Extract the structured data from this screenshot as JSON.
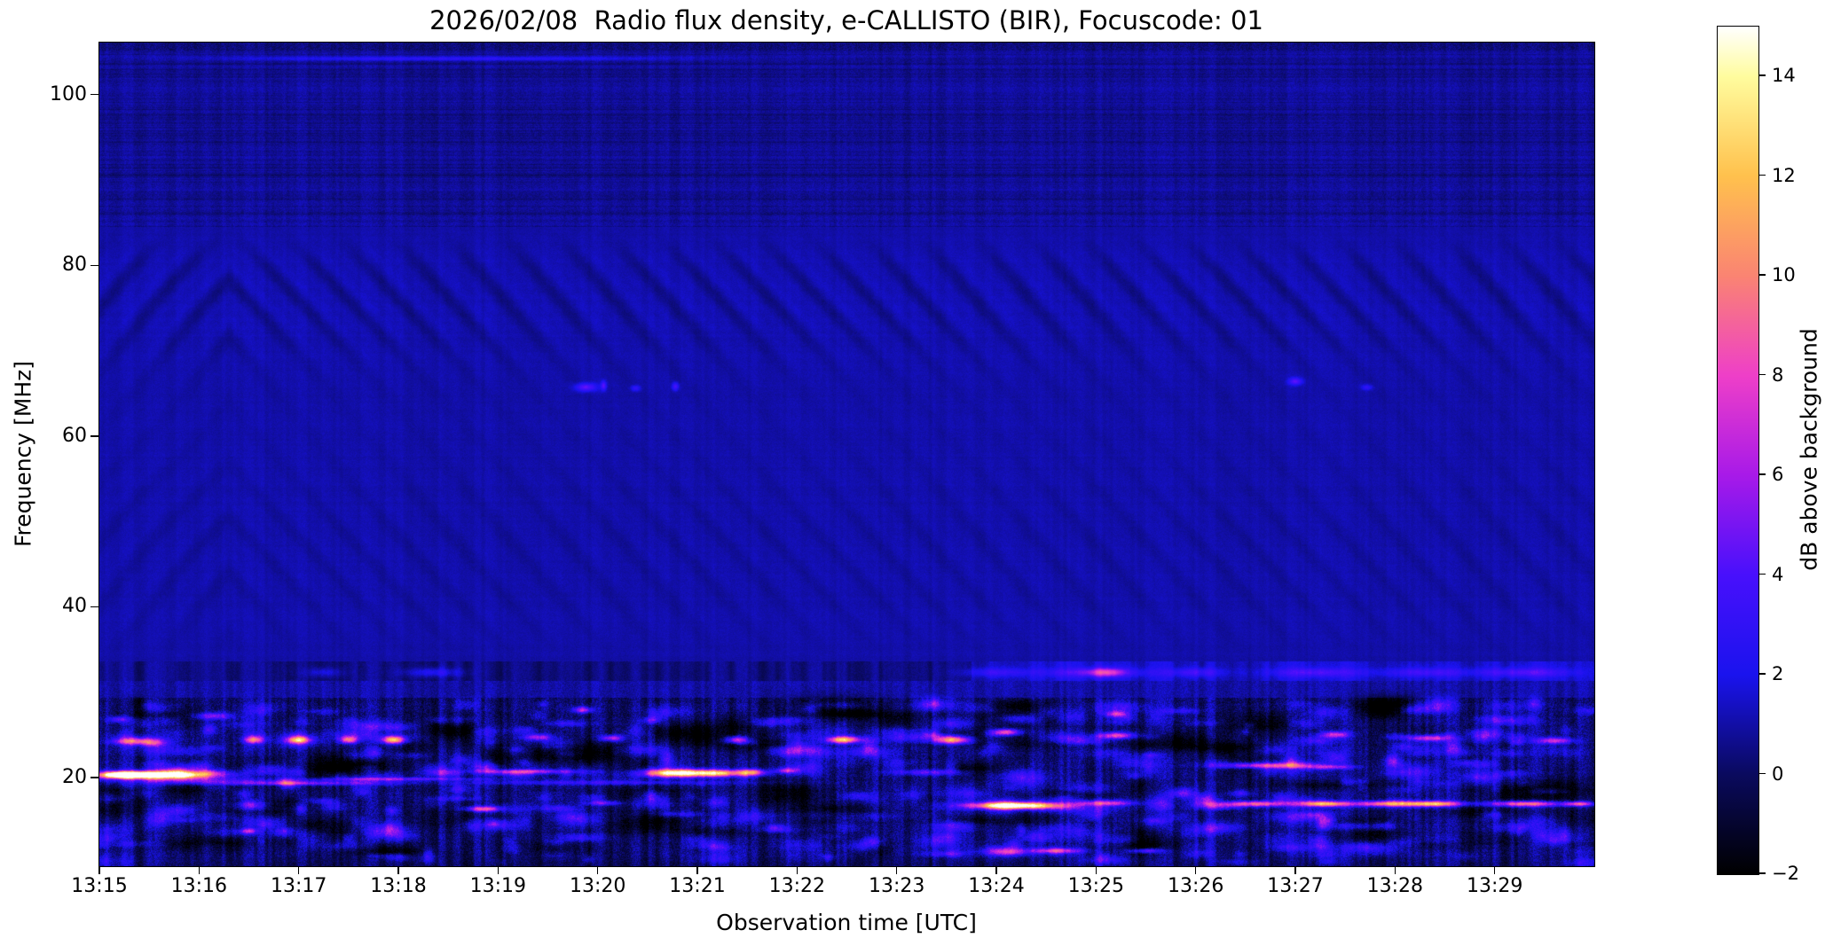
{
  "chart_data": {
    "type": "heatmap",
    "title": "2026/02/08  Radio flux density, e-CALLISTO (BIR), Focuscode: 01",
    "xlabel": "Observation time [UTC]",
    "ylabel": "Frequency [MHz]",
    "x_tick_labels": [
      "13:15",
      "13:16",
      "13:17",
      "13:18",
      "13:19",
      "13:20",
      "13:21",
      "13:22",
      "13:23",
      "13:24",
      "13:25",
      "13:26",
      "13:27",
      "13:28",
      "13:29"
    ],
    "x_range_utc": [
      "13:15:00",
      "13:30:00"
    ],
    "x_total_minutes": 15,
    "y_tick_values": [
      20,
      40,
      60,
      80,
      100
    ],
    "y_range_mhz": [
      9.6,
      106.1
    ],
    "grid": false,
    "colorbar": {
      "label": "dB above background",
      "tick_values": [
        14,
        12,
        10,
        8,
        6,
        4,
        2,
        0,
        -2
      ],
      "tick_labels": [
        "14",
        "12",
        "10",
        "8",
        "6",
        "4",
        "2",
        "0",
        "−2"
      ],
      "range_db": [
        -2,
        15
      ],
      "colormap": "gnuplot2-like (black-blue-violet-magenta-orange-yellow-white)",
      "colormap_stops": [
        {
          "pos": 0.0,
          "color": "#000000"
        },
        {
          "pos": 0.118,
          "color": "#0a0a5e"
        },
        {
          "pos": 0.235,
          "color": "#1a13ee"
        },
        {
          "pos": 0.353,
          "color": "#4810fc"
        },
        {
          "pos": 0.471,
          "color": "#a81ae8"
        },
        {
          "pos": 0.588,
          "color": "#ee3fc8"
        },
        {
          "pos": 0.706,
          "color": "#fa8472"
        },
        {
          "pos": 0.824,
          "color": "#ffc14d"
        },
        {
          "pos": 0.941,
          "color": "#fffc9e"
        },
        {
          "pos": 1.0,
          "color": "#ffffff"
        }
      ]
    },
    "spectrogram": {
      "description": "Quiet dark-blue background ~1 dB; diagonal interference-fringe ripples between ~34-84 MHz (chevron arches before 13:17); darker high band above ~85 MHz with horizontal striping; dark quiet lane at 31-34 MHz brightening after ~13:24; strong broadband RFI below ~29 MHz with blue speckle and bright ionospheric/shortwave emission streaks.",
      "noise_seed": 20260208,
      "background_db": 1.0,
      "rfi_top_mhz": 29.3,
      "quiet_band_mhz": [
        31.3,
        33.6
      ],
      "ripple_band_mhz": [
        33.6,
        84.5
      ],
      "high_band_above_mhz": 84.5,
      "feature_format": "[t_min_after_13:15, f_mhz, halfwidth_min, halfheight_mhz, peak_db]",
      "bright_features": [
        [
          0.25,
          20.3,
          0.2,
          0.35,
          14.5
        ],
        [
          0.55,
          20.3,
          0.55,
          0.45,
          13
        ],
        [
          0.6,
          20.1,
          0.8,
          0.8,
          6
        ],
        [
          1.9,
          19.3,
          0.9,
          0.25,
          5.5
        ],
        [
          3.0,
          19.8,
          0.9,
          0.22,
          4.5
        ],
        [
          4.3,
          20.7,
          0.55,
          0.28,
          5.5
        ],
        [
          5.0,
          19.4,
          1.6,
          0.3,
          3
        ],
        [
          1.5,
          19.6,
          1.0,
          0.3,
          3.2
        ],
        [
          5.75,
          20.5,
          0.3,
          0.5,
          12.5
        ],
        [
          6.2,
          20.5,
          0.28,
          0.45,
          12
        ],
        [
          6.55,
          20.6,
          0.15,
          0.4,
          8
        ],
        [
          6.9,
          20.8,
          0.12,
          0.35,
          6
        ],
        [
          8.3,
          20.6,
          0.4,
          0.4,
          4.5
        ],
        [
          1.15,
          27.2,
          0.22,
          0.45,
          5.5
        ],
        [
          0.2,
          26.8,
          0.12,
          0.4,
          4.5
        ],
        [
          0.35,
          24.2,
          0.25,
          0.4,
          4
        ],
        [
          1.55,
          24.4,
          0.1,
          0.45,
          7
        ],
        [
          2.0,
          24.4,
          0.12,
          0.45,
          9.5
        ],
        [
          2.5,
          24.4,
          0.1,
          0.45,
          9
        ],
        [
          2.95,
          24.4,
          0.13,
          0.5,
          12
        ],
        [
          4.4,
          24.7,
          0.15,
          0.4,
          6.5
        ],
        [
          5.15,
          24.6,
          0.12,
          0.4,
          7
        ],
        [
          6.4,
          24.4,
          0.13,
          0.45,
          8.5
        ],
        [
          7.45,
          24.4,
          0.16,
          0.45,
          10
        ],
        [
          8.55,
          24.4,
          0.2,
          0.5,
          12
        ],
        [
          9.1,
          25.3,
          0.15,
          0.4,
          8.5
        ],
        [
          10.2,
          24.9,
          0.2,
          0.4,
          8
        ],
        [
          10.2,
          27.4,
          0.12,
          0.4,
          6.5
        ],
        [
          12.4,
          25.0,
          0.15,
          0.4,
          7
        ],
        [
          13.35,
          24.6,
          0.25,
          0.4,
          7.5
        ],
        [
          14.6,
          24.3,
          0.2,
          0.4,
          7
        ],
        [
          2.9,
          25.9,
          0.3,
          0.5,
          3.5
        ],
        [
          3.85,
          16.3,
          0.18,
          0.35,
          8.5
        ],
        [
          5.05,
          17.0,
          0.2,
          0.3,
          5
        ],
        [
          4.85,
          27.9,
          0.1,
          0.4,
          6.5
        ],
        [
          9.2,
          16.7,
          0.45,
          0.4,
          11.5
        ],
        [
          9.2,
          16.7,
          0.7,
          0.6,
          5
        ],
        [
          10.1,
          17.0,
          0.3,
          0.35,
          7
        ],
        [
          11.7,
          21.4,
          0.5,
          0.35,
          7.5
        ],
        [
          12.35,
          21.2,
          0.25,
          0.3,
          5
        ],
        [
          11.6,
          16.9,
          0.35,
          0.35,
          9
        ],
        [
          12.3,
          16.9,
          0.25,
          0.35,
          11
        ],
        [
          12.9,
          16.9,
          0.35,
          0.35,
          9.5
        ],
        [
          13.4,
          16.9,
          0.3,
          0.35,
          11.5
        ],
        [
          14.3,
          16.9,
          0.4,
          0.35,
          10
        ],
        [
          14.85,
          16.9,
          0.15,
          0.3,
          8
        ],
        [
          9.6,
          11.4,
          0.3,
          0.35,
          7
        ],
        [
          10.5,
          11.4,
          0.2,
          0.3,
          5.5
        ],
        [
          1.5,
          13.7,
          0.1,
          0.35,
          5.5
        ],
        [
          3.5,
          104.2,
          2.5,
          0.25,
          2.2
        ]
      ],
      "narrowband_dots_66mhz": [
        [
          4.88,
          65.7,
          0.11,
          0.5,
          3.6
        ],
        [
          5.06,
          65.9,
          0.03,
          0.6,
          3.2
        ],
        [
          5.38,
          65.6,
          0.05,
          0.35,
          2.2
        ],
        [
          5.78,
          65.8,
          0.035,
          0.5,
          3.0
        ],
        [
          12.0,
          66.4,
          0.07,
          0.45,
          3.4
        ],
        [
          12.72,
          65.7,
          0.06,
          0.35,
          2.0
        ]
      ],
      "band_32mhz": {
        "f_mhz": 32.3,
        "bright_after_min": 8.75,
        "segment_format": "[t_min, halfwidth_min, peak_db]",
        "segments": [
          [
            2.25,
            0.2,
            1.6
          ],
          [
            3.35,
            0.3,
            2.2
          ],
          [
            9.0,
            0.35,
            2.0
          ],
          [
            10.0,
            0.55,
            2.6
          ],
          [
            10.1,
            0.18,
            4.5
          ],
          [
            11.0,
            0.3,
            2.3
          ],
          [
            12.2,
            0.5,
            2.4
          ],
          [
            13.3,
            0.45,
            2.2
          ],
          [
            14.3,
            0.5,
            2.5
          ]
        ]
      },
      "rfi_band": {
        "top_mhz": 29.3,
        "blob_rows_mhz": [
          28.2,
          26.6,
          25.2,
          24.4,
          23.1,
          21.6,
          20.3,
          19.1,
          17.8,
          16.6,
          15.3,
          14.1,
          12.9,
          11.6,
          10.6
        ],
        "random_blue_blobs": 380,
        "random_dark_blobs": 90
      },
      "ripples": {
        "period_min": 0.53,
        "slope_mhz_per_min": -13.1,
        "chevron_apex_min": 1.3,
        "strong_center_mhz": 76.5,
        "weak_center_mhz": 46
      }
    }
  }
}
